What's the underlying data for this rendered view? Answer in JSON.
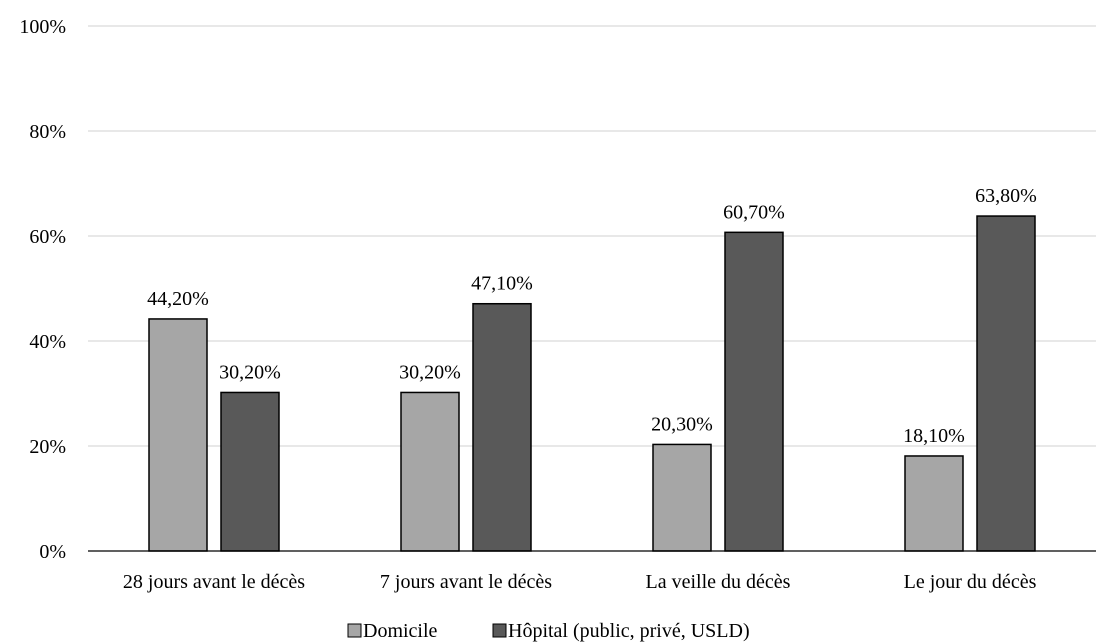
{
  "chart_data": {
    "type": "bar",
    "categories": [
      "28 jours avant le décès",
      "7 jours avant le décès",
      "La veille du décès",
      "Le jour du décès"
    ],
    "series": [
      {
        "name": "Domicile",
        "values": [
          44.2,
          30.2,
          20.3,
          18.1
        ],
        "labels": [
          "44,20%",
          "30,20%",
          "20,30%",
          "18,10%"
        ],
        "color": "#a6a6a6"
      },
      {
        "name": "Hôpital (public, privé, USLD)",
        "values": [
          30.2,
          47.1,
          60.7,
          63.8
        ],
        "labels": [
          "30,20%",
          "47,10%",
          "60,70%",
          "63,80%"
        ],
        "color": "#595959"
      }
    ],
    "yticks": [
      "0%",
      "20%",
      "40%",
      "60%",
      "80%",
      "100%"
    ],
    "ylim": [
      0,
      100
    ],
    "grid": true,
    "legend_position": "bottom"
  }
}
